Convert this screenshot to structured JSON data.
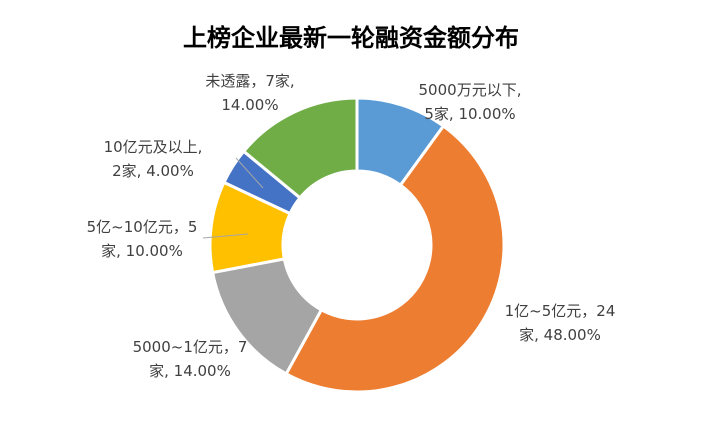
{
  "chart_data": {
    "type": "pie",
    "style": "donut",
    "title": "上榜企业最新一轮融资金额分布",
    "slices": [
      {
        "category": "5000万元以下",
        "count": 5,
        "percent": 10.0,
        "color": "#5B9BD5",
        "label_lines": [
          "5000万元以下,",
          "5家, 10.00%"
        ]
      },
      {
        "category": "1亿~5亿元",
        "count": 24,
        "percent": 48.0,
        "color": "#ED7D31",
        "label_lines": [
          "1亿~5亿元，24",
          "家, 48.00%"
        ]
      },
      {
        "category": "5000~1亿元",
        "count": 7,
        "percent": 14.0,
        "color": "#A5A5A5",
        "label_lines": [
          "5000~1亿元，7",
          "家, 14.00%"
        ]
      },
      {
        "category": "5亿~10亿元",
        "count": 5,
        "percent": 10.0,
        "color": "#FFC000",
        "label_lines": [
          "5亿~10亿元，5",
          "家, 10.00%"
        ]
      },
      {
        "category": "10亿元及以上",
        "count": 2,
        "percent": 4.0,
        "color": "#4472C4",
        "label_lines": [
          "10亿元及以上,",
          "2家, 4.00%"
        ]
      },
      {
        "category": "未透露",
        "count": 7,
        "percent": 14.0,
        "color": "#70AD47",
        "label_lines": [
          "未透露，7家,",
          "14.00%"
        ]
      }
    ],
    "legend": "none"
  }
}
